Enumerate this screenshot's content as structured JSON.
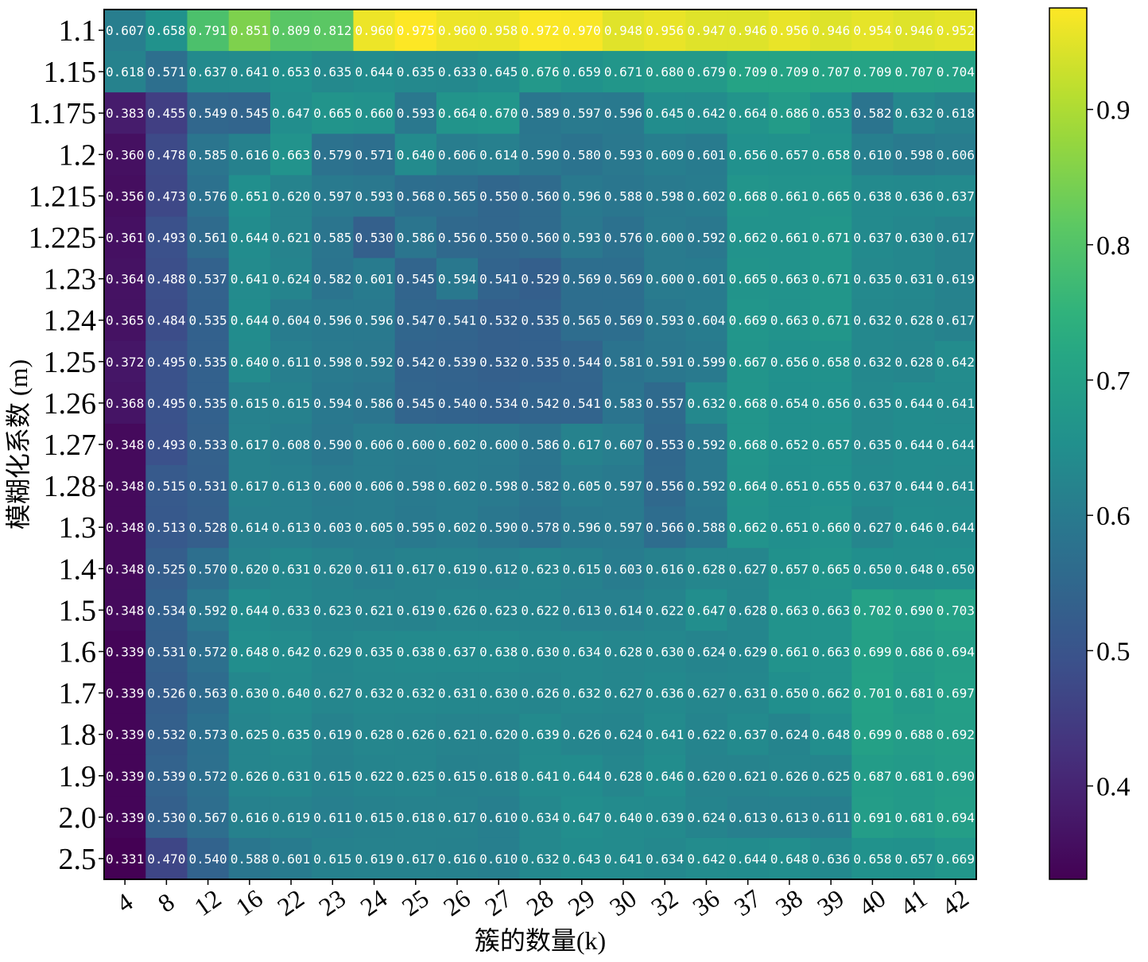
{
  "chart_data": {
    "type": "heatmap",
    "title": "",
    "xlabel": "簇的数量(k)",
    "ylabel": "模糊化系数 (m)",
    "x_categories": [
      "4",
      "8",
      "12",
      "16",
      "22",
      "23",
      "24",
      "25",
      "26",
      "27",
      "28",
      "29",
      "30",
      "32",
      "36",
      "37",
      "38",
      "39",
      "40",
      "41",
      "42"
    ],
    "y_categories": [
      "1.1",
      "1.15",
      "1.175",
      "1.2",
      "1.215",
      "1.225",
      "1.23",
      "1.24",
      "1.25",
      "1.26",
      "1.27",
      "1.28",
      "1.3",
      "1.4",
      "1.5",
      "1.6",
      "1.7",
      "1.8",
      "1.9",
      "2.0",
      "2.5"
    ],
    "values": [
      [
        0.607,
        0.658,
        0.791,
        0.851,
        0.809,
        0.812,
        0.96,
        0.975,
        0.96,
        0.958,
        0.972,
        0.97,
        0.948,
        0.956,
        0.947,
        0.946,
        0.956,
        0.946,
        0.954,
        0.946,
        0.952
      ],
      [
        0.618,
        0.571,
        0.637,
        0.641,
        0.653,
        0.635,
        0.644,
        0.635,
        0.633,
        0.645,
        0.676,
        0.659,
        0.671,
        0.68,
        0.679,
        0.709,
        0.709,
        0.707,
        0.709,
        0.707,
        0.704
      ],
      [
        0.383,
        0.455,
        0.549,
        0.545,
        0.647,
        0.665,
        0.66,
        0.593,
        0.664,
        0.67,
        0.589,
        0.597,
        0.596,
        0.645,
        0.642,
        0.664,
        0.686,
        0.653,
        0.582,
        0.632,
        0.618
      ],
      [
        0.36,
        0.478,
        0.585,
        0.616,
        0.663,
        0.579,
        0.571,
        0.64,
        0.606,
        0.614,
        0.59,
        0.58,
        0.593,
        0.609,
        0.601,
        0.656,
        0.657,
        0.658,
        0.61,
        0.598,
        0.606
      ],
      [
        0.356,
        0.473,
        0.576,
        0.651,
        0.62,
        0.597,
        0.593,
        0.568,
        0.565,
        0.55,
        0.56,
        0.596,
        0.588,
        0.598,
        0.602,
        0.668,
        0.661,
        0.665,
        0.638,
        0.636,
        0.637
      ],
      [
        0.361,
        0.493,
        0.561,
        0.644,
        0.621,
        0.585,
        0.53,
        0.586,
        0.556,
        0.55,
        0.56,
        0.593,
        0.576,
        0.6,
        0.592,
        0.662,
        0.661,
        0.671,
        0.637,
        0.63,
        0.617
      ],
      [
        0.364,
        0.488,
        0.537,
        0.641,
        0.624,
        0.582,
        0.601,
        0.545,
        0.594,
        0.541,
        0.529,
        0.569,
        0.569,
        0.6,
        0.601,
        0.665,
        0.663,
        0.671,
        0.635,
        0.631,
        0.619
      ],
      [
        0.365,
        0.484,
        0.535,
        0.644,
        0.604,
        0.596,
        0.596,
        0.547,
        0.541,
        0.532,
        0.535,
        0.565,
        0.569,
        0.593,
        0.604,
        0.669,
        0.663,
        0.671,
        0.632,
        0.628,
        0.617
      ],
      [
        0.372,
        0.495,
        0.535,
        0.64,
        0.611,
        0.598,
        0.592,
        0.542,
        0.539,
        0.532,
        0.535,
        0.544,
        0.581,
        0.591,
        0.599,
        0.667,
        0.656,
        0.658,
        0.632,
        0.628,
        0.642
      ],
      [
        0.368,
        0.495,
        0.535,
        0.615,
        0.615,
        0.594,
        0.586,
        0.545,
        0.54,
        0.534,
        0.542,
        0.541,
        0.583,
        0.557,
        0.632,
        0.668,
        0.654,
        0.656,
        0.635,
        0.644,
        0.641
      ],
      [
        0.348,
        0.493,
        0.533,
        0.617,
        0.608,
        0.59,
        0.606,
        0.6,
        0.602,
        0.6,
        0.586,
        0.617,
        0.607,
        0.553,
        0.592,
        0.668,
        0.652,
        0.657,
        0.635,
        0.644,
        0.644
      ],
      [
        0.348,
        0.515,
        0.531,
        0.617,
        0.613,
        0.6,
        0.606,
        0.598,
        0.602,
        0.598,
        0.582,
        0.605,
        0.597,
        0.556,
        0.592,
        0.664,
        0.651,
        0.655,
        0.637,
        0.644,
        0.641
      ],
      [
        0.348,
        0.513,
        0.528,
        0.614,
        0.613,
        0.603,
        0.605,
        0.595,
        0.602,
        0.59,
        0.578,
        0.596,
        0.597,
        0.566,
        0.588,
        0.662,
        0.651,
        0.66,
        0.627,
        0.646,
        0.644
      ],
      [
        0.348,
        0.525,
        0.57,
        0.62,
        0.631,
        0.62,
        0.611,
        0.617,
        0.619,
        0.612,
        0.623,
        0.615,
        0.603,
        0.616,
        0.628,
        0.627,
        0.657,
        0.665,
        0.65,
        0.648,
        0.65
      ],
      [
        0.348,
        0.534,
        0.592,
        0.644,
        0.633,
        0.623,
        0.621,
        0.619,
        0.626,
        0.623,
        0.622,
        0.613,
        0.614,
        0.622,
        0.647,
        0.628,
        0.663,
        0.663,
        0.702,
        0.69,
        0.703
      ],
      [
        0.339,
        0.531,
        0.572,
        0.648,
        0.642,
        0.629,
        0.635,
        0.638,
        0.637,
        0.638,
        0.63,
        0.634,
        0.628,
        0.63,
        0.624,
        0.629,
        0.661,
        0.663,
        0.699,
        0.686,
        0.694
      ],
      [
        0.339,
        0.526,
        0.563,
        0.63,
        0.64,
        0.627,
        0.632,
        0.632,
        0.631,
        0.63,
        0.626,
        0.632,
        0.627,
        0.636,
        0.627,
        0.631,
        0.65,
        0.662,
        0.701,
        0.681,
        0.697
      ],
      [
        0.339,
        0.532,
        0.573,
        0.625,
        0.635,
        0.619,
        0.628,
        0.626,
        0.621,
        0.62,
        0.639,
        0.626,
        0.624,
        0.641,
        0.622,
        0.637,
        0.624,
        0.648,
        0.699,
        0.688,
        0.692
      ],
      [
        0.339,
        0.539,
        0.572,
        0.626,
        0.631,
        0.615,
        0.622,
        0.625,
        0.615,
        0.618,
        0.641,
        0.644,
        0.628,
        0.646,
        0.62,
        0.621,
        0.626,
        0.625,
        0.687,
        0.681,
        0.69
      ],
      [
        0.339,
        0.53,
        0.567,
        0.616,
        0.619,
        0.611,
        0.615,
        0.618,
        0.617,
        0.61,
        0.634,
        0.647,
        0.64,
        0.639,
        0.624,
        0.613,
        0.613,
        0.611,
        0.691,
        0.681,
        0.694
      ],
      [
        0.331,
        0.47,
        0.54,
        0.588,
        0.601,
        0.615,
        0.619,
        0.617,
        0.616,
        0.61,
        0.632,
        0.643,
        0.641,
        0.634,
        0.642,
        0.644,
        0.648,
        0.636,
        0.658,
        0.657,
        0.669
      ]
    ],
    "cell_labels": [
      [
        "0.607",
        "0.658",
        "0.791",
        "0.851",
        "0.809",
        "0.812",
        "0.960",
        "0.975",
        "0.960",
        "0.958",
        "0.972",
        "0.970",
        "0.948",
        "0.956",
        "0.947",
        "0.946",
        "0.956",
        "0.946",
        "0.954",
        "0.946",
        "0.952"
      ],
      [
        "0.618",
        "0.571",
        "0.637",
        "0.641",
        "0.653",
        "0.635",
        "0.644",
        "0.635",
        "0.633",
        "0.645",
        "0.676",
        "0.659",
        "0.671",
        "0.680",
        "0.679",
        "0.709",
        "0.709",
        "0.707",
        "0.709",
        "0.707",
        "0.704"
      ],
      [
        "0.383",
        "0.455",
        "0.549",
        "0.545",
        "0.647",
        "0.665",
        "0.660",
        "0.593",
        "0.664",
        "0.670",
        "0.589",
        "0.597",
        "0.596",
        "0.645",
        "0.642",
        "0.664",
        "0.686",
        "0.653",
        "0.582",
        "0.632",
        "0.618"
      ],
      [
        "0.360",
        "0.478",
        "0.585",
        "0.616",
        "0.663",
        "0.579",
        "0.571",
        "0.640",
        "0.606",
        "0.614",
        "0.590",
        "0.580",
        "0.593",
        "0.609",
        "0.601",
        "0.656",
        "0.657",
        "0.658",
        "0.610",
        "0.598",
        "0.606"
      ],
      [
        "0.356",
        "0.473",
        "0.576",
        "0.651",
        "0.620",
        "0.597",
        "0.593",
        "0.568",
        "0.565",
        "0.550",
        "0.560",
        "0.596",
        "0.588",
        "0.598",
        "0.602",
        "0.668",
        "0.661",
        "0.665",
        "0.638",
        "0.636",
        "0.637"
      ],
      [
        "0.361",
        "0.493",
        "0.561",
        "0.644",
        "0.621",
        "0.585",
        "0.530",
        "0.586",
        "0.556",
        "0.550",
        "0.560",
        "0.593",
        "0.576",
        "0.600",
        "0.592",
        "0.662",
        "0.661",
        "0.671",
        "0.637",
        "0.630",
        "0.617"
      ],
      [
        "0.364",
        "0.488",
        "0.537",
        "0.641",
        "0.624",
        "0.582",
        "0.601",
        "0.545",
        "0.594",
        "0.541",
        "0.529",
        "0.569",
        "0.569",
        "0.600",
        "0.601",
        "0.665",
        "0.663",
        "0.671",
        "0.635",
        "0.631",
        "0.619"
      ],
      [
        "0.365",
        "0.484",
        "0.535",
        "0.644",
        "0.604",
        "0.596",
        "0.596",
        "0.547",
        "0.541",
        "0.532",
        "0.535",
        "0.565",
        "0.569",
        "0.593",
        "0.604",
        "0.669",
        "0.663",
        "0.671",
        "0.632",
        "0.628",
        "0.617"
      ],
      [
        "0.372",
        "0.495",
        "0.535",
        "0.640",
        "0.611",
        "0.598",
        "0.592",
        "0.542",
        "0.539",
        "0.532",
        "0.535",
        "0.544",
        "0.581",
        "0.591",
        "0.599",
        "0.667",
        "0.656",
        "0.658",
        "0.632",
        "0.628",
        "0.642"
      ],
      [
        "0.368",
        "0.495",
        "0.535",
        "0.615",
        "0.615",
        "0.594",
        "0.586",
        "0.545",
        "0.540",
        "0.534",
        "0.542",
        "0.541",
        "0.583",
        "0.557",
        "0.632",
        "0.668",
        "0.654",
        "0.656",
        "0.635",
        "0.644",
        "0.641"
      ],
      [
        "0.348",
        "0.493",
        "0.533",
        "0.617",
        "0.608",
        "0.590",
        "0.606",
        "0.600",
        "0.602",
        "0.600",
        "0.586",
        "0.617",
        "0.607",
        "0.553",
        "0.592",
        "0.668",
        "0.652",
        "0.657",
        "0.635",
        "0.644",
        "0.644"
      ],
      [
        "0.348",
        "0.515",
        "0.531",
        "0.617",
        "0.613",
        "0.600",
        "0.606",
        "0.598",
        "0.602",
        "0.598",
        "0.582",
        "0.605",
        "0.597",
        "0.556",
        "0.592",
        "0.664",
        "0.651",
        "0.655",
        "0.637",
        "0.644",
        "0.641"
      ],
      [
        "0.348",
        "0.513",
        "0.528",
        "0.614",
        "0.613",
        "0.603",
        "0.605",
        "0.595",
        "0.602",
        "0.590",
        "0.578",
        "0.596",
        "0.597",
        "0.566",
        "0.588",
        "0.662",
        "0.651",
        "0.660",
        "0.627",
        "0.646",
        "0.644"
      ],
      [
        "0.348",
        "0.525",
        "0.570",
        "0.620",
        "0.631",
        "0.620",
        "0.611",
        "0.617",
        "0.619",
        "0.612",
        "0.623",
        "0.615",
        "0.603",
        "0.616",
        "0.628",
        "0.627",
        "0.657",
        "0.665",
        "0.650",
        "0.648",
        "0.650"
      ],
      [
        "0.348",
        "0.534",
        "0.592",
        "0.644",
        "0.633",
        "0.623",
        "0.621",
        "0.619",
        "0.626",
        "0.623",
        "0.622",
        "0.613",
        "0.614",
        "0.622",
        "0.647",
        "0.628",
        "0.663",
        "0.663",
        "0.702",
        "0.690",
        "0.703"
      ],
      [
        "0.339",
        "0.531",
        "0.572",
        "0.648",
        "0.642",
        "0.629",
        "0.635",
        "0.638",
        "0.637",
        "0.638",
        "0.630",
        "0.634",
        "0.628",
        "0.630",
        "0.624",
        "0.629",
        "0.661",
        "0.663",
        "0.699",
        "0.686",
        "0.694"
      ],
      [
        "0.339",
        "0.526",
        "0.563",
        "0.630",
        "0.640",
        "0.627",
        "0.632",
        "0.632",
        "0.631",
        "0.630",
        "0.626",
        "0.632",
        "0.627",
        "0.636",
        "0.627",
        "0.631",
        "0.650",
        "0.662",
        "0.701",
        "0.681",
        "0.697"
      ],
      [
        "0.339",
        "0.532",
        "0.573",
        "0.625",
        "0.635",
        "0.619",
        "0.628",
        "0.626",
        "0.621",
        "0.620",
        "0.639",
        "0.626",
        "0.624",
        "0.641",
        "0.622",
        "0.637",
        "0.624",
        "0.648",
        "0.699",
        "0.688",
        "0.692"
      ],
      [
        "0.339",
        "0.539",
        "0.572",
        "0.626",
        "0.631",
        "0.615",
        "0.622",
        "0.625",
        "0.615",
        "0.618",
        "0.641",
        "0.644",
        "0.628",
        "0.646",
        "0.620",
        "0.621",
        "0.626",
        "0.625",
        "0.687",
        "0.681",
        "0.690"
      ],
      [
        "0.339",
        "0.530",
        "0.567",
        "0.616",
        "0.619",
        "0.611",
        "0.615",
        "0.618",
        "0.617",
        "0.610",
        "0.634",
        "0.647",
        "0.640",
        "0.639",
        "0.624",
        "0.613",
        "0.613",
        "0.611",
        "0.691",
        "0.681",
        "0.694"
      ],
      [
        "0.331",
        "0.470",
        "0.540",
        "0.588",
        "0.601",
        "0.615",
        "0.619",
        "0.617",
        "0.616",
        "0.610",
        "0.632",
        "0.643",
        "0.641",
        "0.634",
        "0.642",
        "0.644",
        "0.648",
        "0.636",
        "0.658",
        "0.657",
        "0.669"
      ]
    ],
    "colormap": "viridis",
    "color_range": [
      0.331,
      0.975
    ],
    "colorbar_ticks": [
      "0.4",
      "0.5",
      "0.6",
      "0.7",
      "0.8",
      "0.9"
    ],
    "cell_text_color": "#ffffff",
    "legend": "colorbar-right",
    "grid": false
  }
}
